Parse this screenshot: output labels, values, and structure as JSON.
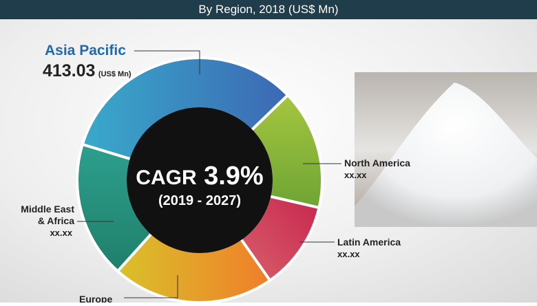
{
  "header": {
    "title": "By Region, 2018 (US$ Mn)"
  },
  "center": {
    "label": "CAGR",
    "value": "3.9%",
    "period": "(2019 - 2027)"
  },
  "regions": [
    {
      "name": "Asia Pacific",
      "value": "413.03",
      "unit": "(US$ Mn)"
    },
    {
      "name": "North America",
      "value": "xx.xx"
    },
    {
      "name": "Latin America",
      "value": "xx.xx"
    },
    {
      "name": "Europe"
    },
    {
      "name_lines": [
        "Middle East",
        "& Africa"
      ],
      "value": "xx.xx"
    }
  ]
}
